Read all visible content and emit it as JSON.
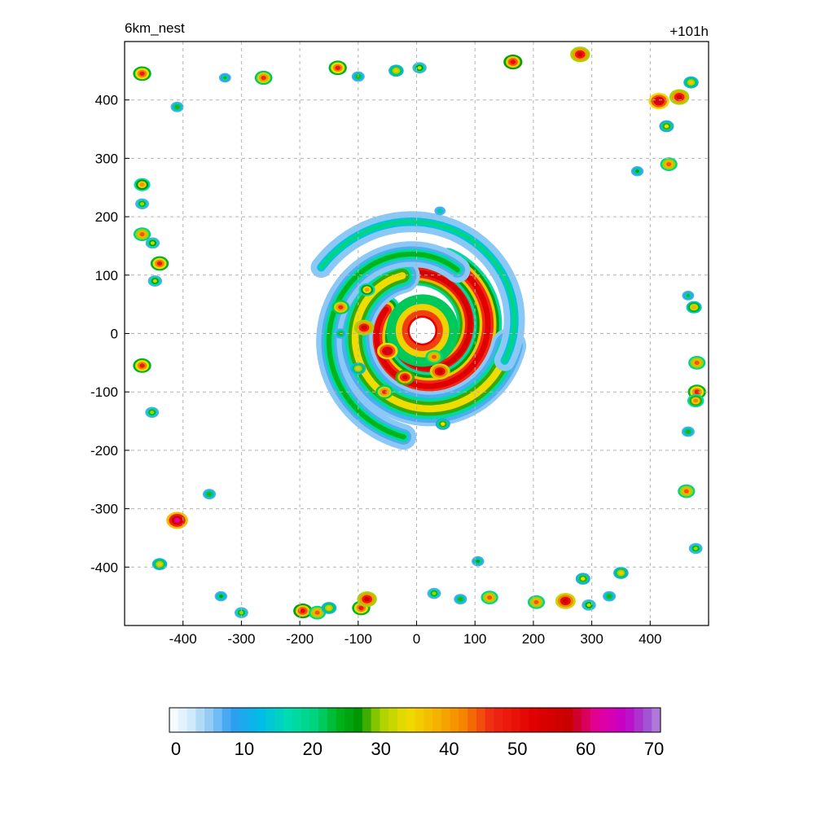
{
  "chart_data": {
    "type": "heatmap",
    "title": "6km_nest",
    "time_label": "+101h",
    "xlabel": "",
    "ylabel": "",
    "xlim": [
      -500,
      500
    ],
    "ylim": [
      -500,
      500
    ],
    "x_ticks": [
      -400,
      -300,
      -200,
      -100,
      0,
      100,
      200,
      300,
      400
    ],
    "y_ticks": [
      400,
      300,
      200,
      100,
      0,
      -100,
      -200,
      -300,
      -400
    ],
    "grid": true,
    "colorbar": {
      "min": 0,
      "max": 70,
      "ticks": [
        0,
        10,
        20,
        30,
        40,
        50,
        60,
        70
      ],
      "stops": [
        {
          "v": 0,
          "color": "#ffffff"
        },
        {
          "v": 3,
          "color": "#d2ebfb"
        },
        {
          "v": 6,
          "color": "#8cc8f5"
        },
        {
          "v": 9,
          "color": "#2d9ef0"
        },
        {
          "v": 13,
          "color": "#00bde8"
        },
        {
          "v": 17,
          "color": "#00dcb0"
        },
        {
          "v": 21,
          "color": "#00d278"
        },
        {
          "v": 24,
          "color": "#00b41e"
        },
        {
          "v": 27,
          "color": "#009600"
        },
        {
          "v": 30,
          "color": "#a5d200"
        },
        {
          "v": 34,
          "color": "#f0dc00"
        },
        {
          "v": 38,
          "color": "#f5b400"
        },
        {
          "v": 42,
          "color": "#f58200"
        },
        {
          "v": 46,
          "color": "#f02814"
        },
        {
          "v": 52,
          "color": "#e10000"
        },
        {
          "v": 57,
          "color": "#c80000"
        },
        {
          "v": 61,
          "color": "#e6009e"
        },
        {
          "v": 65,
          "color": "#c300c8"
        },
        {
          "v": 68,
          "color": "#a050d2"
        },
        {
          "v": 70,
          "color": "#b48cdc"
        }
      ]
    },
    "eye": {
      "x": 10,
      "y": 5,
      "radius": 22
    },
    "rain_bands": [
      {
        "a0": 200,
        "a1": 560,
        "r0": 50,
        "r1": 120,
        "width": 22,
        "value": 48
      },
      {
        "a0": 150,
        "a1": 430,
        "r0": 72,
        "r1": 125,
        "width": 24,
        "value": 46
      },
      {
        "a0": 110,
        "a1": 350,
        "r0": 100,
        "r1": 150,
        "width": 30,
        "value": 28
      },
      {
        "a0": 60,
        "a1": 260,
        "r0": 120,
        "r1": 185,
        "width": 22,
        "value": 18
      },
      {
        "a0": -20,
        "a1": 150,
        "r0": 150,
        "r1": 205,
        "width": 18,
        "value": 14
      }
    ],
    "cells": [
      {
        "x": -470,
        "y": 445,
        "v": 42
      },
      {
        "x": -470,
        "y": 255,
        "v": 35
      },
      {
        "x": -470,
        "y": 222,
        "v": 24
      },
      {
        "x": -470,
        "y": 170,
        "v": 38
      },
      {
        "x": -452,
        "y": 155,
        "v": 26
      },
      {
        "x": -440,
        "y": 120,
        "v": 42
      },
      {
        "x": -448,
        "y": 90,
        "v": 26
      },
      {
        "x": -470,
        "y": -55,
        "v": 42
      },
      {
        "x": -453,
        "y": -135,
        "v": 24
      },
      {
        "x": -410,
        "y": -320,
        "v": 55
      },
      {
        "x": -355,
        "y": -275,
        "v": 22
      },
      {
        "x": -440,
        "y": -395,
        "v": 30
      },
      {
        "x": -410,
        "y": 388,
        "v": 22
      },
      {
        "x": -328,
        "y": 438,
        "v": 18
      },
      {
        "x": -262,
        "y": 438,
        "v": 40
      },
      {
        "x": -135,
        "y": 455,
        "v": 42
      },
      {
        "x": -100,
        "y": 440,
        "v": 22
      },
      {
        "x": -35,
        "y": 450,
        "v": 30
      },
      {
        "x": 5,
        "y": 455,
        "v": 26
      },
      {
        "x": -195,
        "y": -475,
        "v": 44
      },
      {
        "x": -170,
        "y": -478,
        "v": 38
      },
      {
        "x": -150,
        "y": -470,
        "v": 30
      },
      {
        "x": -95,
        "y": -470,
        "v": 42
      },
      {
        "x": -85,
        "y": -455,
        "v": 48
      },
      {
        "x": -300,
        "y": -478,
        "v": 24
      },
      {
        "x": -335,
        "y": -450,
        "v": 20
      },
      {
        "x": 30,
        "y": -445,
        "v": 24
      },
      {
        "x": 75,
        "y": -455,
        "v": 22
      },
      {
        "x": 125,
        "y": -452,
        "v": 38
      },
      {
        "x": 205,
        "y": -460,
        "v": 38
      },
      {
        "x": 255,
        "y": -458,
        "v": 50
      },
      {
        "x": 295,
        "y": -465,
        "v": 26
      },
      {
        "x": 330,
        "y": -450,
        "v": 22
      },
      {
        "x": 350,
        "y": -410,
        "v": 30
      },
      {
        "x": 285,
        "y": -420,
        "v": 28
      },
      {
        "x": 105,
        "y": -390,
        "v": 20
      },
      {
        "x": 165,
        "y": 465,
        "v": 44
      },
      {
        "x": 280,
        "y": 478,
        "v": 48
      },
      {
        "x": 415,
        "y": 398,
        "v": 52
      },
      {
        "x": 450,
        "y": 405,
        "v": 48
      },
      {
        "x": 470,
        "y": 430,
        "v": 30
      },
      {
        "x": 428,
        "y": 355,
        "v": 28
      },
      {
        "x": 432,
        "y": 290,
        "v": 38
      },
      {
        "x": 378,
        "y": 278,
        "v": 20
      },
      {
        "x": 475,
        "y": 45,
        "v": 32
      },
      {
        "x": 480,
        "y": -50,
        "v": 38
      },
      {
        "x": 480,
        "y": -100,
        "v": 42
      },
      {
        "x": 478,
        "y": -115,
        "v": 36
      },
      {
        "x": 465,
        "y": -168,
        "v": 22
      },
      {
        "x": 462,
        "y": -270,
        "v": 38
      },
      {
        "x": 478,
        "y": -368,
        "v": 24
      },
      {
        "x": 465,
        "y": 65,
        "v": 18
      },
      {
        "x": 40,
        "y": 210,
        "v": 14
      },
      {
        "x": -130,
        "y": 45,
        "v": 40
      },
      {
        "x": -90,
        "y": 10,
        "v": 48
      },
      {
        "x": -50,
        "y": -30,
        "v": 52
      },
      {
        "x": 40,
        "y": -65,
        "v": 50
      },
      {
        "x": -20,
        "y": -75,
        "v": 46
      },
      {
        "x": 45,
        "y": -155,
        "v": 28
      },
      {
        "x": 30,
        "y": -40,
        "v": 38
      },
      {
        "x": -85,
        "y": 75,
        "v": 34
      },
      {
        "x": -55,
        "y": -100,
        "v": 40
      },
      {
        "x": -130,
        "y": 0,
        "v": 22
      },
      {
        "x": -100,
        "y": -60,
        "v": 30
      }
    ]
  }
}
